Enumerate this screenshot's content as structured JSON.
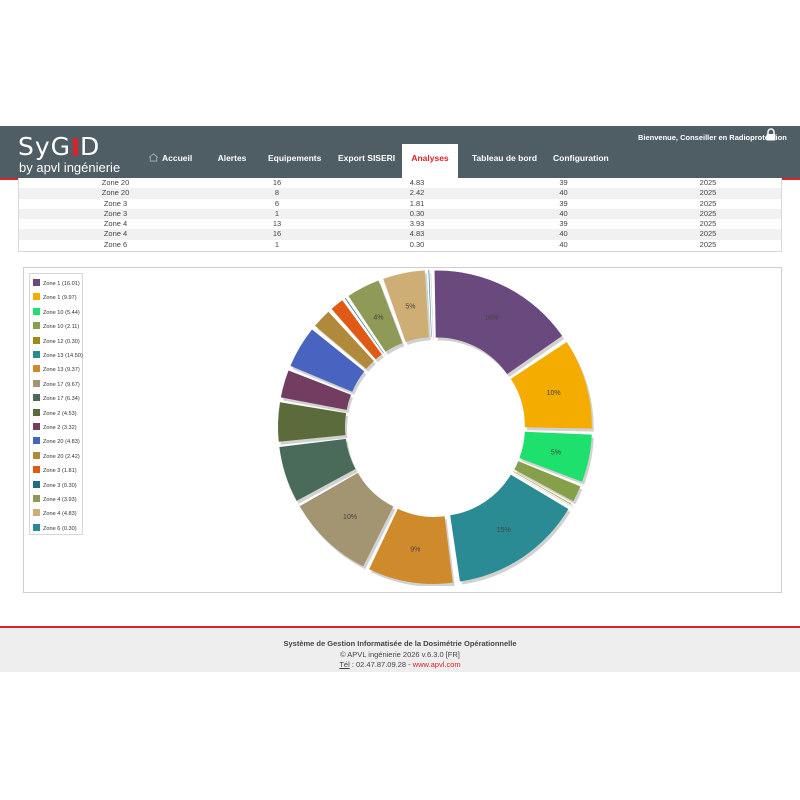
{
  "header": {
    "logo_word": [
      "SyG",
      "D"
    ],
    "logo_sub": "by apvl ingénierie",
    "welcome": "Bienvenue, Conseiller en Radioprotection",
    "nav": [
      {
        "label": "Accueil"
      },
      {
        "label": "Alertes"
      },
      {
        "label": "Equipements"
      },
      {
        "label": "Export SISERI"
      },
      {
        "label": "Analyses",
        "active": true
      },
      {
        "label": "Tableau de bord"
      },
      {
        "label": "Configuration"
      }
    ],
    "colors": {
      "bar": "#4f5d64",
      "accent": "#d8232a"
    }
  },
  "table": {
    "rows": [
      [
        "Zone 20",
        "16",
        "4.83",
        "39",
        "2025"
      ],
      [
        "Zone 20",
        "8",
        "2.42",
        "40",
        "2025"
      ],
      [
        "Zone 3",
        "6",
        "1.81",
        "39",
        "2025"
      ],
      [
        "Zone 3",
        "1",
        "0.30",
        "40",
        "2025"
      ],
      [
        "Zone 4",
        "13",
        "3.93",
        "39",
        "2025"
      ],
      [
        "Zone 4",
        "16",
        "4.83",
        "40",
        "2025"
      ],
      [
        "Zone 6",
        "1",
        "0.30",
        "40",
        "2025"
      ]
    ]
  },
  "chart_data": {
    "type": "pie",
    "donut": true,
    "legend_position": "left",
    "labels": [
      "Zone 1 (16.01)",
      "Zone 1 (9.97)",
      "Zone 10 (5.44)",
      "Zone 10 (2.11)",
      "Zone 12 (0.30)",
      "Zone 13 (14.50)",
      "Zone 13 (9.37)",
      "Zone 17 (9.67)",
      "Zone 17 (6.34)",
      "Zone 2 (4.53)",
      "Zone 2 (3.32)",
      "Zone 20 (4.83)",
      "Zone 20 (2.42)",
      "Zone 3 (1.81)",
      "Zone 3 (0.30)",
      "Zone 4 (3.93)",
      "Zone 4 (4.83)",
      "Zone 6 (0.30)"
    ],
    "values": [
      16.01,
      9.97,
      5.44,
      2.11,
      0.3,
      14.5,
      9.37,
      9.67,
      6.34,
      4.53,
      3.32,
      4.83,
      2.42,
      1.81,
      0.3,
      3.93,
      4.83,
      0.3
    ],
    "legend_colors": [
      "#6a4a7e",
      "#f5ac00",
      "#1ee06c",
      "#86a04a",
      "#9a8c14",
      "#2a8b94",
      "#cf8a2c",
      "#a39472",
      "#4a6a5a",
      "#5b6b3c",
      "#733d61",
      "#4964c0",
      "#b08a3a",
      "#e05a14",
      "#1f6f7d",
      "#8e9a55",
      "#cfae75",
      "#2a8b94"
    ],
    "slice_labels": [
      "16%",
      "10%",
      "5%",
      "",
      "",
      "15%",
      "9%",
      "10%",
      "",
      "",
      "",
      "",
      "",
      "",
      "",
      "4%",
      "5%",
      ""
    ]
  },
  "footer": {
    "title": "Système de Gestion Informatisée de la Dosimétrie Opérationnelle",
    "copyright": "© APVL ingénierie 2026 v.6.3.0 [FR]",
    "tel_label": "Tél",
    "tel_number": " : 02.47.87.09.28 - ",
    "website": "www.apvl.com"
  }
}
